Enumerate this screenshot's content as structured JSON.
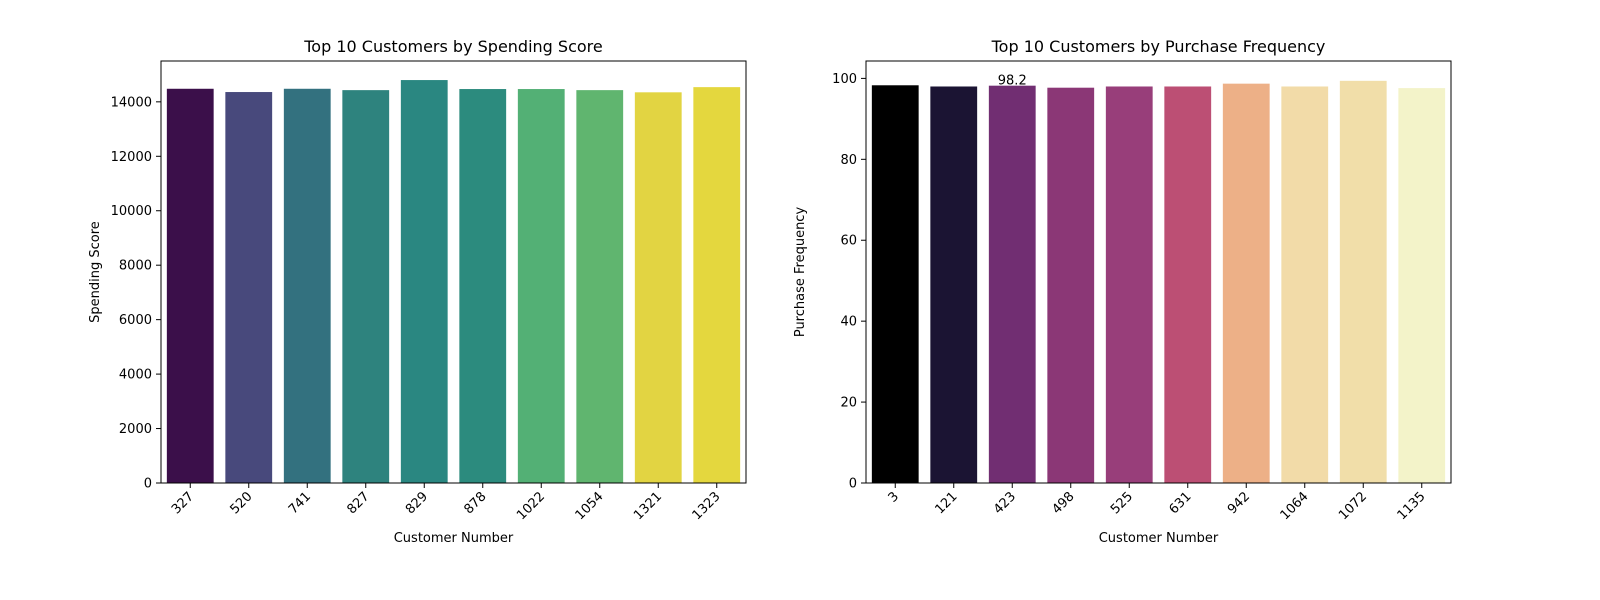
{
  "chart_data": [
    {
      "type": "bar",
      "title": "Top 10 Customers by Spending Score",
      "xlabel": "Customer Number",
      "ylabel": "Spending Score",
      "categories": [
        "327",
        "520",
        "741",
        "827",
        "829",
        "878",
        "1022",
        "1054",
        "1321",
        "1323"
      ],
      "values": [
        14480,
        14360,
        14480,
        14430,
        14800,
        14470,
        14470,
        14430,
        14350,
        14540
      ],
      "colors": [
        "#3b0f4a",
        "#48497c",
        "#33717f",
        "#2e837e",
        "#2a8781",
        "#2c8b7e",
        "#53b075",
        "#60b56f",
        "#e2d442",
        "#e4d73e"
      ],
      "ylim": [
        0,
        15500
      ],
      "yticks": [
        0,
        2000,
        4000,
        6000,
        8000,
        10000,
        12000,
        14000
      ],
      "ytick_labels": [
        "0",
        "2000",
        "4000",
        "6000",
        "8000",
        "10000",
        "12000",
        "14000"
      ],
      "grid": false,
      "annotations": []
    },
    {
      "type": "bar",
      "title": "Top 10 Customers by Purchase Frequency",
      "xlabel": "Customer Number",
      "ylabel": "Purchase Frequency",
      "categories": [
        "3",
        "121",
        "423",
        "498",
        "525",
        "631",
        "942",
        "1064",
        "1072",
        "1135"
      ],
      "values": [
        98.3,
        98.0,
        98.2,
        97.7,
        98.0,
        98.0,
        98.7,
        98.0,
        99.4,
        97.6
      ],
      "colors": [
        "#000000",
        "#1b1433",
        "#712e72",
        "#8b3776",
        "#983e7a",
        "#bc4f74",
        "#edb087",
        "#f2dba8",
        "#f1dea9",
        "#f3f3c9"
      ],
      "ylim": [
        0,
        104.3
      ],
      "yticks": [
        0,
        20,
        40,
        60,
        80,
        100
      ],
      "ytick_labels": [
        "0",
        "20",
        "40",
        "60",
        "80",
        "100"
      ],
      "grid": false,
      "annotations": [
        {
          "category": "423",
          "value": 98.2,
          "text": "98.2"
        }
      ]
    }
  ]
}
